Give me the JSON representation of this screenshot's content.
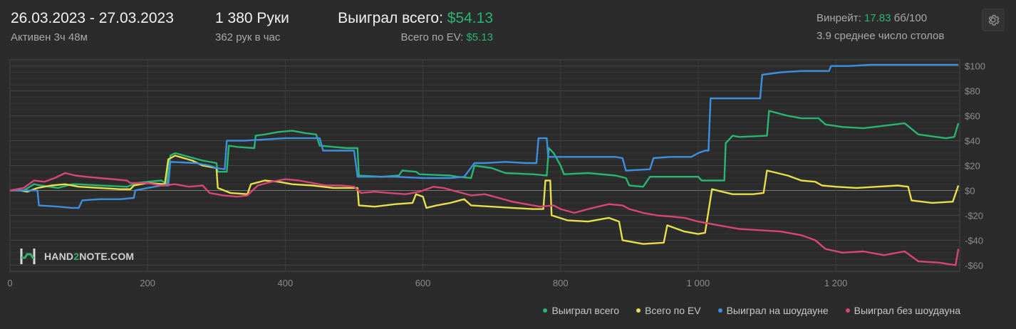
{
  "header": {
    "date_range": "26.03.2023 - 27.03.2023",
    "active_time": "Активен 3ч 48м",
    "hands_count": "1 380 Руки",
    "hands_per_hour": "362 рук в час",
    "won_total_label": "Выиграл всего:",
    "won_total_value": "$54.13",
    "ev_label": "Всего по EV:",
    "ev_value": "$5.13",
    "winrate_label": "Винрейт:",
    "winrate_value": "17.83",
    "winrate_unit": "бб/100",
    "avg_tables": "3.9 среднее число столов"
  },
  "settings_icon": "gear-icon",
  "logo": {
    "text_pre": "HAND",
    "text_hl": "2",
    "text_post": "NOTE.COM"
  },
  "legend": [
    {
      "label": "Выиграл всего",
      "color": "#27b673"
    },
    {
      "label": "Всего по EV",
      "color": "#e8e04a"
    },
    {
      "label": "Выиграл на шоудауне",
      "color": "#3f8fe0"
    },
    {
      "label": "Выиграл без шоудауна",
      "color": "#d94576"
    }
  ],
  "chart_data": {
    "type": "line",
    "xlim": [
      0,
      1380
    ],
    "ylim": [
      -65,
      105
    ],
    "x_ticks": [
      0,
      200,
      400,
      600,
      800,
      1000,
      1200
    ],
    "x_tick_labels": [
      "0",
      "200",
      "400",
      "600",
      "800",
      "1 000",
      "1 200"
    ],
    "y_ticks": [
      100,
      80,
      60,
      40,
      20,
      0,
      -20,
      -40,
      -60
    ],
    "y_tick_labels": [
      "$100",
      "$80",
      "$60",
      "$40",
      "$20",
      "$0",
      "-$20",
      "-$40",
      "-$60"
    ],
    "grid": true,
    "legend_position": "bottom-right",
    "series": [
      {
        "name": "Выиграл всего",
        "color": "#27b673",
        "points": [
          [
            0,
            0
          ],
          [
            20,
            0
          ],
          [
            35,
            5
          ],
          [
            45,
            4
          ],
          [
            70,
            2
          ],
          [
            90,
            5
          ],
          [
            100,
            5
          ],
          [
            130,
            4
          ],
          [
            170,
            3
          ],
          [
            185,
            6
          ],
          [
            200,
            7
          ],
          [
            220,
            8
          ],
          [
            228,
            5
          ],
          [
            233,
            28
          ],
          [
            240,
            30
          ],
          [
            260,
            27
          ],
          [
            280,
            24
          ],
          [
            300,
            22
          ],
          [
            302,
            15
          ],
          [
            315,
            15
          ],
          [
            318,
            36
          ],
          [
            330,
            35
          ],
          [
            355,
            34
          ],
          [
            357,
            44
          ],
          [
            370,
            45
          ],
          [
            390,
            47
          ],
          [
            410,
            48
          ],
          [
            430,
            46
          ],
          [
            445,
            45
          ],
          [
            450,
            36
          ],
          [
            470,
            35
          ],
          [
            490,
            34
          ],
          [
            505,
            34
          ],
          [
            507,
            12
          ],
          [
            540,
            11
          ],
          [
            565,
            12
          ],
          [
            570,
            16
          ],
          [
            590,
            15
          ],
          [
            595,
            13
          ],
          [
            640,
            12
          ],
          [
            650,
            11
          ],
          [
            670,
            10
          ],
          [
            675,
            20
          ],
          [
            700,
            18
          ],
          [
            720,
            14
          ],
          [
            760,
            13
          ],
          [
            780,
            12
          ],
          [
            783,
            34
          ],
          [
            790,
            30
          ],
          [
            800,
            20
          ],
          [
            805,
            13
          ],
          [
            840,
            14
          ],
          [
            880,
            12
          ],
          [
            895,
            10
          ],
          [
            900,
            4
          ],
          [
            920,
            3
          ],
          [
            930,
            11
          ],
          [
            960,
            11
          ],
          [
            1000,
            11
          ],
          [
            1005,
            8
          ],
          [
            1038,
            8
          ],
          [
            1040,
            38
          ],
          [
            1050,
            44
          ],
          [
            1060,
            43
          ],
          [
            1100,
            44
          ],
          [
            1103,
            64
          ],
          [
            1130,
            60
          ],
          [
            1150,
            58
          ],
          [
            1175,
            58
          ],
          [
            1185,
            53
          ],
          [
            1210,
            51
          ],
          [
            1240,
            50
          ],
          [
            1270,
            52
          ],
          [
            1300,
            54
          ],
          [
            1320,
            45
          ],
          [
            1360,
            42
          ],
          [
            1372,
            43
          ],
          [
            1378,
            54
          ]
        ]
      },
      {
        "name": "Всего по EV",
        "color": "#e8e04a",
        "points": [
          [
            0,
            0
          ],
          [
            15,
            0
          ],
          [
            25,
            -1
          ],
          [
            40,
            2
          ],
          [
            60,
            4
          ],
          [
            80,
            5
          ],
          [
            100,
            3
          ],
          [
            130,
            2
          ],
          [
            160,
            1
          ],
          [
            175,
            1
          ],
          [
            180,
            4
          ],
          [
            200,
            6
          ],
          [
            225,
            5
          ],
          [
            230,
            25
          ],
          [
            240,
            28
          ],
          [
            265,
            24
          ],
          [
            280,
            20
          ],
          [
            300,
            18
          ],
          [
            302,
            2
          ],
          [
            320,
            -2
          ],
          [
            345,
            -3
          ],
          [
            350,
            5
          ],
          [
            370,
            8
          ],
          [
            390,
            7
          ],
          [
            410,
            5
          ],
          [
            440,
            4
          ],
          [
            470,
            2
          ],
          [
            505,
            2
          ],
          [
            507,
            -12
          ],
          [
            530,
            -13
          ],
          [
            560,
            -11
          ],
          [
            585,
            -10
          ],
          [
            590,
            -3
          ],
          [
            600,
            -5
          ],
          [
            605,
            -14
          ],
          [
            620,
            -12
          ],
          [
            640,
            -10
          ],
          [
            660,
            -7
          ],
          [
            670,
            -12
          ],
          [
            700,
            -13
          ],
          [
            730,
            -14
          ],
          [
            760,
            -15
          ],
          [
            775,
            -15
          ],
          [
            778,
            8
          ],
          [
            785,
            8
          ],
          [
            787,
            -20
          ],
          [
            810,
            -24
          ],
          [
            840,
            -25
          ],
          [
            870,
            -22
          ],
          [
            885,
            -25
          ],
          [
            890,
            -40
          ],
          [
            920,
            -43
          ],
          [
            950,
            -42
          ],
          [
            955,
            -28
          ],
          [
            980,
            -33
          ],
          [
            1000,
            -35
          ],
          [
            1010,
            -34
          ],
          [
            1020,
            1
          ],
          [
            1050,
            -3
          ],
          [
            1080,
            -3
          ],
          [
            1095,
            -2
          ],
          [
            1100,
            16
          ],
          [
            1130,
            12
          ],
          [
            1150,
            8
          ],
          [
            1170,
            7
          ],
          [
            1180,
            4
          ],
          [
            1200,
            3
          ],
          [
            1230,
            2
          ],
          [
            1260,
            3
          ],
          [
            1290,
            4
          ],
          [
            1305,
            3
          ],
          [
            1310,
            -8
          ],
          [
            1340,
            -10
          ],
          [
            1370,
            -9
          ],
          [
            1378,
            4
          ]
        ]
      },
      {
        "name": "Выиграл на шоудауне",
        "color": "#3f8fe0",
        "points": [
          [
            0,
            0
          ],
          [
            40,
            0
          ],
          [
            42,
            -12
          ],
          [
            70,
            -13
          ],
          [
            90,
            -14
          ],
          [
            100,
            -14
          ],
          [
            105,
            -8
          ],
          [
            130,
            -7
          ],
          [
            160,
            -7
          ],
          [
            180,
            -6
          ],
          [
            182,
            0
          ],
          [
            200,
            2
          ],
          [
            220,
            4
          ],
          [
            230,
            4
          ],
          [
            233,
            23
          ],
          [
            270,
            22
          ],
          [
            290,
            20
          ],
          [
            300,
            18
          ],
          [
            312,
            17
          ],
          [
            315,
            40
          ],
          [
            340,
            40
          ],
          [
            370,
            41
          ],
          [
            400,
            42
          ],
          [
            430,
            42
          ],
          [
            450,
            42
          ],
          [
            455,
            32
          ],
          [
            490,
            32
          ],
          [
            500,
            32
          ],
          [
            505,
            11
          ],
          [
            520,
            11
          ],
          [
            560,
            11
          ],
          [
            600,
            10
          ],
          [
            620,
            10
          ],
          [
            640,
            10
          ],
          [
            660,
            11
          ],
          [
            675,
            22
          ],
          [
            690,
            22
          ],
          [
            720,
            23
          ],
          [
            750,
            22
          ],
          [
            765,
            22
          ],
          [
            768,
            42
          ],
          [
            780,
            42
          ],
          [
            782,
            27
          ],
          [
            810,
            27
          ],
          [
            850,
            27
          ],
          [
            880,
            27
          ],
          [
            890,
            26
          ],
          [
            895,
            16
          ],
          [
            930,
            17
          ],
          [
            935,
            26
          ],
          [
            960,
            27
          ],
          [
            990,
            27
          ],
          [
            1000,
            30
          ],
          [
            1010,
            32
          ],
          [
            1015,
            32
          ],
          [
            1018,
            74
          ],
          [
            1030,
            74
          ],
          [
            1050,
            74
          ],
          [
            1080,
            74
          ],
          [
            1090,
            74
          ],
          [
            1093,
            93
          ],
          [
            1120,
            95
          ],
          [
            1150,
            96
          ],
          [
            1180,
            96
          ],
          [
            1190,
            96
          ],
          [
            1193,
            100
          ],
          [
            1220,
            100
          ],
          [
            1250,
            101
          ],
          [
            1300,
            101
          ],
          [
            1378,
            101
          ]
        ]
      },
      {
        "name": "Выиграл без шоудауна",
        "color": "#d94576",
        "points": [
          [
            0,
            0
          ],
          [
            20,
            2
          ],
          [
            35,
            8
          ],
          [
            50,
            7
          ],
          [
            65,
            10
          ],
          [
            80,
            14
          ],
          [
            95,
            12
          ],
          [
            110,
            11
          ],
          [
            130,
            10
          ],
          [
            150,
            9
          ],
          [
            170,
            8
          ],
          [
            175,
            6
          ],
          [
            200,
            6
          ],
          [
            220,
            4
          ],
          [
            240,
            5
          ],
          [
            260,
            3
          ],
          [
            280,
            4
          ],
          [
            290,
            -2
          ],
          [
            310,
            -4
          ],
          [
            330,
            -5
          ],
          [
            345,
            -4
          ],
          [
            360,
            4
          ],
          [
            380,
            7
          ],
          [
            400,
            9
          ],
          [
            420,
            8
          ],
          [
            440,
            6
          ],
          [
            460,
            4
          ],
          [
            480,
            4
          ],
          [
            500,
            3
          ],
          [
            510,
            -2
          ],
          [
            530,
            -1
          ],
          [
            550,
            -2
          ],
          [
            575,
            -3
          ],
          [
            595,
            -1
          ],
          [
            615,
            3
          ],
          [
            630,
            2
          ],
          [
            650,
            -1
          ],
          [
            670,
            -4
          ],
          [
            690,
            -3
          ],
          [
            710,
            -6
          ],
          [
            730,
            -9
          ],
          [
            750,
            -11
          ],
          [
            770,
            -13
          ],
          [
            790,
            -12
          ],
          [
            800,
            -15
          ],
          [
            820,
            -18
          ],
          [
            840,
            -15
          ],
          [
            870,
            -11
          ],
          [
            890,
            -12
          ],
          [
            900,
            -15
          ],
          [
            920,
            -18
          ],
          [
            940,
            -20
          ],
          [
            960,
            -21
          ],
          [
            980,
            -22
          ],
          [
            1000,
            -25
          ],
          [
            1030,
            -28
          ],
          [
            1060,
            -31
          ],
          [
            1090,
            -32
          ],
          [
            1120,
            -33
          ],
          [
            1150,
            -36
          ],
          [
            1170,
            -40
          ],
          [
            1185,
            -47
          ],
          [
            1210,
            -50
          ],
          [
            1240,
            -49
          ],
          [
            1270,
            -52
          ],
          [
            1300,
            -49
          ],
          [
            1320,
            -57
          ],
          [
            1350,
            -58
          ],
          [
            1374,
            -60
          ],
          [
            1378,
            -47
          ]
        ]
      }
    ]
  }
}
